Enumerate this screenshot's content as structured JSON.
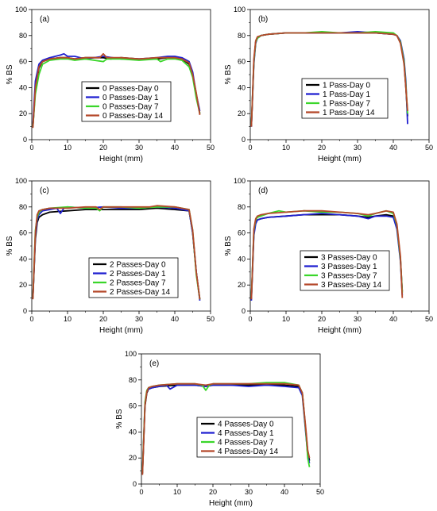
{
  "colors": {
    "day0": "#000000",
    "day1": "#1f1fd0",
    "day7": "#3ad62a",
    "day14": "#b5482a",
    "stray_pink": "#ff4d9e"
  },
  "chart_data": [
    {
      "type": "line",
      "panel_label": "(a)",
      "xlabel": "Height (mm)",
      "ylabel": "% BS",
      "xlim": [
        0,
        50
      ],
      "ylim": [
        0,
        100
      ],
      "xticks": [
        "0",
        "10",
        "20",
        "30",
        "40",
        "50"
      ],
      "yticks": [
        "0",
        "20",
        "40",
        "60",
        "80",
        "100"
      ],
      "legend_position": "bottom-center",
      "series": [
        {
          "name": "0 Passes-Day 0",
          "x": [
            0.3,
            1,
            2,
            3,
            5,
            8,
            10,
            12,
            15,
            20,
            22,
            25,
            30,
            35,
            38,
            40,
            42,
            44,
            45,
            46,
            47
          ],
          "y": [
            10,
            38,
            55,
            60,
            62,
            63,
            63,
            62,
            63,
            63,
            62,
            63,
            62,
            62,
            63,
            63,
            62,
            58,
            50,
            35,
            20
          ]
        },
        {
          "name": "0 Passes-Day 1",
          "x": [
            0.3,
            1,
            2,
            3,
            5,
            8,
            9,
            10,
            12,
            15,
            20,
            25,
            30,
            35,
            38,
            40,
            42,
            44,
            45,
            46,
            47
          ],
          "y": [
            12,
            45,
            58,
            61,
            63,
            65,
            66,
            64,
            64,
            62,
            64,
            62,
            62,
            63,
            64,
            64,
            63,
            60,
            52,
            35,
            22
          ]
        },
        {
          "name": "0 Passes-Day 7",
          "x": [
            0.3,
            1,
            2,
            3,
            5,
            8,
            10,
            12,
            15,
            20,
            21,
            22,
            25,
            30,
            35,
            36,
            38,
            40,
            42,
            44,
            45,
            46,
            47
          ],
          "y": [
            10,
            35,
            50,
            58,
            61,
            62,
            62,
            61,
            62,
            60,
            62,
            62,
            62,
            61,
            62,
            60,
            62,
            62,
            61,
            56,
            48,
            32,
            20
          ]
        },
        {
          "name": "0 Passes-Day 14",
          "x": [
            0.3,
            1,
            2,
            3,
            5,
            8,
            10,
            12,
            15,
            19,
            20,
            21,
            25,
            30,
            35,
            38,
            40,
            42,
            44,
            45,
            46,
            47
          ],
          "y": [
            9,
            40,
            56,
            60,
            62,
            63,
            63,
            62,
            63,
            63,
            66,
            63,
            63,
            62,
            63,
            63,
            63,
            62,
            59,
            50,
            36,
            19
          ]
        }
      ]
    },
    {
      "type": "line",
      "panel_label": "(b)",
      "xlabel": "Height (mm)",
      "ylabel": "% BS",
      "xlim": [
        0,
        50
      ],
      "ylim": [
        0,
        100
      ],
      "xticks": [
        "0",
        "10",
        "20",
        "30",
        "40",
        "50"
      ],
      "yticks": [
        "0",
        "20",
        "40",
        "60",
        "80",
        "100"
      ],
      "legend_position": "bottom-center",
      "series": [
        {
          "name": "1 Pass-Day 0",
          "x": [
            0.3,
            1,
            1.5,
            2,
            3,
            5,
            10,
            15,
            20,
            25,
            30,
            35,
            40,
            41,
            42,
            43,
            43.5,
            44
          ],
          "y": [
            10,
            60,
            75,
            78,
            80,
            81,
            82,
            82,
            82,
            82,
            82,
            82,
            81,
            80,
            75,
            60,
            40,
            18
          ]
        },
        {
          "name": "1 Pass-Day 1",
          "x": [
            0.3,
            1,
            1.5,
            2,
            3,
            5,
            10,
            15,
            20,
            25,
            30,
            35,
            40,
            41,
            42,
            43,
            43.5,
            44
          ],
          "y": [
            10,
            58,
            74,
            78,
            80,
            81,
            82,
            82,
            82,
            82,
            83,
            82,
            81,
            80,
            76,
            62,
            45,
            12
          ]
        },
        {
          "name": "1 Pass-Day 7",
          "x": [
            0.3,
            1,
            1.5,
            2,
            3,
            5,
            10,
            15,
            20,
            25,
            30,
            35,
            40,
            41,
            42,
            43,
            43.5,
            44
          ],
          "y": [
            11,
            60,
            75,
            78,
            80,
            81,
            82,
            82,
            83,
            82,
            82,
            83,
            82,
            80,
            75,
            60,
            42,
            20
          ]
        },
        {
          "name": "1 Pass-Day 14",
          "x": [
            0.3,
            1,
            1.5,
            2,
            3,
            5,
            10,
            15,
            20,
            25,
            30,
            35,
            40,
            41,
            42,
            43,
            43.5,
            44
          ],
          "y": [
            10,
            62,
            76,
            79,
            80,
            81,
            82,
            82,
            82,
            82,
            82,
            82,
            81,
            80,
            74,
            58,
            40,
            22
          ]
        }
      ]
    },
    {
      "type": "line",
      "panel_label": "(c)",
      "xlabel": "Height (mm)",
      "ylabel": "% BS",
      "xlim": [
        0,
        50
      ],
      "ylim": [
        0,
        100
      ],
      "xticks": [
        "0",
        "10",
        "20",
        "30",
        "40",
        "50"
      ],
      "yticks": [
        "0",
        "20",
        "40",
        "60",
        "80",
        "100"
      ],
      "legend_position": "bottom-center",
      "series": [
        {
          "name": "2 Passes-Day 0",
          "x": [
            0.3,
            1,
            1.5,
            2,
            3,
            5,
            10,
            15,
            20,
            25,
            30,
            35,
            40,
            44,
            45,
            46,
            47
          ],
          "y": [
            10,
            55,
            68,
            72,
            74,
            76,
            77,
            78,
            78,
            78,
            78,
            79,
            78,
            77,
            60,
            30,
            9
          ]
        },
        {
          "name": "2 Passes-Day 1",
          "x": [
            0.3,
            1,
            1.5,
            2,
            3,
            5,
            7,
            8,
            9,
            10,
            15,
            20,
            25,
            30,
            35,
            40,
            44,
            45,
            46,
            47
          ],
          "y": [
            10,
            58,
            70,
            74,
            77,
            78,
            79,
            75,
            79,
            80,
            79,
            80,
            79,
            79,
            80,
            79,
            77,
            60,
            30,
            8
          ]
        },
        {
          "name": "2 Passes-Day 7",
          "x": [
            0.3,
            1,
            1.5,
            2,
            3,
            5,
            10,
            15,
            18,
            19,
            20,
            25,
            30,
            35,
            40,
            44,
            45,
            46,
            47
          ],
          "y": [
            10,
            62,
            72,
            76,
            78,
            79,
            80,
            79,
            79,
            77,
            80,
            80,
            79,
            80,
            80,
            78,
            62,
            28,
            9
          ]
        },
        {
          "name": "2 Passes-Day 14",
          "x": [
            0.3,
            1,
            1.5,
            2,
            3,
            5,
            10,
            15,
            18,
            19,
            20,
            25,
            30,
            33,
            35,
            40,
            44,
            45,
            46,
            47
          ],
          "y": [
            9,
            60,
            74,
            77,
            78,
            79,
            79,
            80,
            80,
            78,
            80,
            80,
            80,
            80,
            81,
            80,
            78,
            62,
            30,
            9
          ]
        }
      ]
    },
    {
      "type": "line",
      "panel_label": "(d)",
      "xlabel": "Height (mm)",
      "ylabel": "% BS",
      "xlim": [
        0,
        50
      ],
      "ylim": [
        0,
        100
      ],
      "xticks": [
        "0",
        "10",
        "20",
        "30",
        "40",
        "50"
      ],
      "yticks": [
        "0",
        "20",
        "40",
        "60",
        "80",
        "100"
      ],
      "legend_position": "bottom-center",
      "series": [
        {
          "name": "3 Passes-Day 0",
          "x": [
            0.3,
            1,
            1.5,
            2,
            3,
            5,
            10,
            15,
            20,
            25,
            30,
            33,
            35,
            38,
            40,
            41,
            42,
            42.5
          ],
          "y": [
            10,
            60,
            68,
            70,
            71,
            72,
            73,
            74,
            74,
            74,
            73,
            72,
            73,
            74,
            73,
            65,
            40,
            15
          ]
        },
        {
          "name": "3 Passes-Day 1",
          "x": [
            0.3,
            1,
            1.5,
            2,
            3,
            5,
            10,
            15,
            20,
            25,
            30,
            33,
            35,
            38,
            40,
            41,
            42,
            42.5
          ],
          "y": [
            8,
            58,
            67,
            70,
            71,
            72,
            73,
            74,
            75,
            74,
            73,
            71,
            73,
            73,
            72,
            63,
            38,
            12
          ]
        },
        {
          "name": "3 Passes-Day 7",
          "x": [
            0.3,
            1,
            1.5,
            2,
            3,
            5,
            8,
            10,
            15,
            20,
            25,
            30,
            33,
            35,
            38,
            40,
            41,
            42,
            42.5
          ],
          "y": [
            10,
            62,
            70,
            72,
            73,
            75,
            77,
            76,
            77,
            76,
            76,
            75,
            73,
            75,
            77,
            75,
            66,
            40,
            14
          ]
        },
        {
          "name": "3 Passes-Day 14",
          "x": [
            0.3,
            1,
            1.5,
            2,
            3,
            5,
            10,
            15,
            20,
            25,
            30,
            33,
            35,
            38,
            40,
            41,
            42,
            42.5
          ],
          "y": [
            9,
            63,
            71,
            73,
            74,
            75,
            76,
            77,
            77,
            76,
            75,
            74,
            75,
            77,
            76,
            67,
            42,
            10
          ]
        }
      ]
    },
    {
      "type": "line",
      "panel_label": "(e)",
      "xlabel": "Height (mm)",
      "ylabel": "% BS",
      "xlim": [
        0,
        50
      ],
      "ylim": [
        0,
        100
      ],
      "xticks": [
        "0",
        "10",
        "20",
        "30",
        "40",
        "50"
      ],
      "yticks": [
        "0",
        "20",
        "40",
        "60",
        "80",
        "100"
      ],
      "legend_position": "bottom-center",
      "series": [
        {
          "name": "4 Passes-Day 0",
          "x": [
            0.3,
            1,
            1.5,
            2,
            3,
            5,
            10,
            15,
            18,
            20,
            25,
            30,
            35,
            40,
            44,
            45,
            46,
            46.5,
            47
          ],
          "y": [
            8,
            60,
            70,
            73,
            74,
            75,
            76,
            76,
            75,
            76,
            76,
            76,
            76,
            76,
            75,
            70,
            40,
            25,
            18
          ]
        },
        {
          "name": "4 Passes-Day 1",
          "x": [
            0.3,
            1,
            1.5,
            2,
            3,
            5,
            7,
            8,
            10,
            15,
            18,
            20,
            25,
            30,
            35,
            40,
            44,
            45,
            46,
            46.5,
            47
          ],
          "y": [
            10,
            62,
            71,
            73,
            74,
            75,
            76,
            73,
            76,
            76,
            75,
            76,
            76,
            75,
            76,
            75,
            74,
            68,
            38,
            22,
            16
          ]
        },
        {
          "name": "4 Passes-Day 7",
          "x": [
            0.3,
            1,
            1.5,
            2,
            3,
            5,
            10,
            15,
            17,
            18,
            19,
            20,
            25,
            30,
            35,
            40,
            44,
            45,
            46,
            46.5,
            47
          ],
          "y": [
            9,
            63,
            72,
            74,
            75,
            76,
            77,
            77,
            76,
            72,
            76,
            77,
            77,
            77,
            78,
            78,
            76,
            70,
            40,
            20,
            13
          ]
        },
        {
          "name": "4 Passes-Day 14",
          "x": [
            0.3,
            1,
            1.5,
            2,
            3,
            5,
            10,
            15,
            18,
            20,
            25,
            30,
            35,
            40,
            44,
            45,
            46,
            46.5,
            47
          ],
          "y": [
            7,
            61,
            71,
            74,
            75,
            76,
            77,
            77,
            76,
            77,
            77,
            77,
            77,
            77,
            76,
            70,
            42,
            26,
            20
          ]
        }
      ]
    }
  ]
}
